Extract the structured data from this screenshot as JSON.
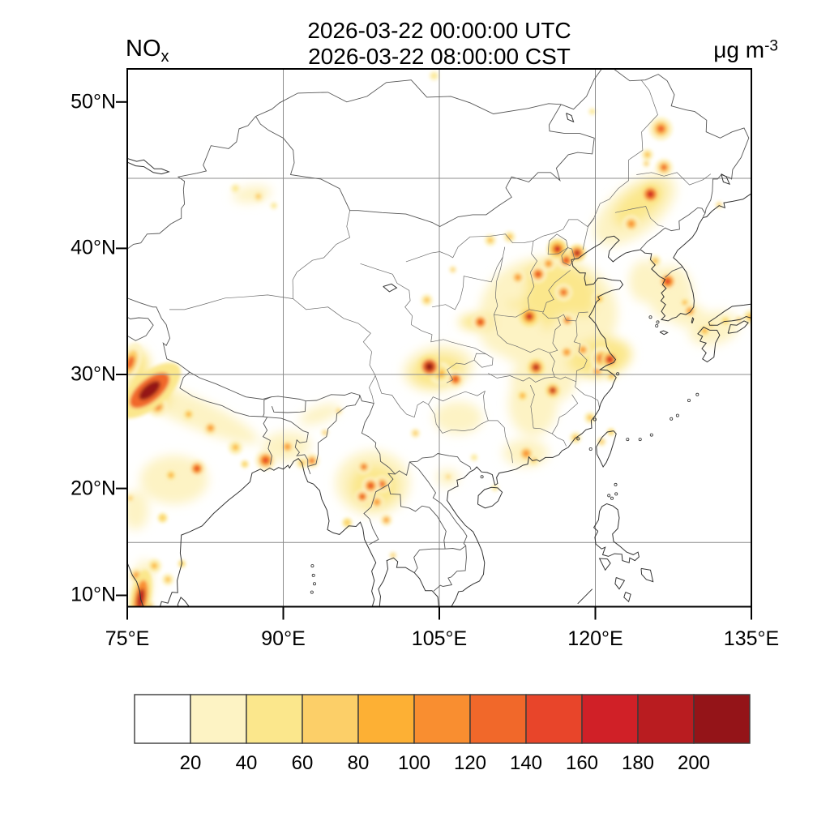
{
  "header": {
    "line1": "2026-03-22 00:00:00 UTC",
    "line2": "2026-03-22 08:00:00 CST"
  },
  "variable": {
    "main": "NO",
    "sub": "x"
  },
  "units": {
    "main": "μg m",
    "sup": "-3"
  },
  "axis": {
    "lat_labels": [
      {
        "text": "50°N",
        "lat": 50
      },
      {
        "text": "40°N",
        "lat": 40
      },
      {
        "text": "30°N",
        "lat": 30
      },
      {
        "text": "20°N",
        "lat": 20
      },
      {
        "text": "10°N",
        "lat": 10
      }
    ],
    "lon_labels": [
      {
        "text": "75°E",
        "lon": 75
      },
      {
        "text": "90°E",
        "lon": 90
      },
      {
        "text": "105°E",
        "lon": 105
      },
      {
        "text": "120°E",
        "lon": 120
      },
      {
        "text": "135°E",
        "lon": 135
      }
    ],
    "gridline_lats": [
      15,
      30,
      45
    ],
    "gridline_lons": [
      90,
      105,
      120
    ]
  },
  "colorbar": {
    "labels": [
      "20",
      "40",
      "60",
      "80",
      "100",
      "120",
      "140",
      "160",
      "180",
      "200"
    ],
    "colors": [
      "#FFFFFF",
      "#FDF3C4",
      "#FBE78C",
      "#FCCF68",
      "#FDB034",
      "#F98E30",
      "#F1682A",
      "#E8452A",
      "#D02027",
      "#B91C20",
      "#941418"
    ]
  },
  "chart_data": {
    "type": "heatmap",
    "variable": "NOx",
    "units": "μg m-3",
    "valid_time_utc": "2026-03-22 00:00:00 UTC",
    "valid_time_local": "2026-03-22 08:00:00 CST",
    "projection": "mercator",
    "lon_range": [
      75,
      135
    ],
    "lat_range": [
      8.9,
      52.0
    ],
    "contour_levels": [
      20,
      40,
      60,
      80,
      100,
      120,
      140,
      160,
      180,
      200
    ],
    "palette": [
      "#FFFFFF",
      "#FDF3C4",
      "#FBE78C",
      "#FCCF68",
      "#FDB034",
      "#F98E30",
      "#F1682A",
      "#E8452A",
      "#D02027",
      "#B91C20",
      "#941418"
    ],
    "hotspot_columns": [
      "lon",
      "lat",
      "value",
      "rx_px",
      "ry_px",
      "rot_deg"
    ],
    "broad_regions": [
      [
        80.8,
        27.0,
        30,
        95,
        18,
        24
      ],
      [
        77.5,
        28.6,
        50,
        26,
        14,
        40
      ],
      [
        79.5,
        20.8,
        25,
        42,
        30,
        0
      ],
      [
        75.7,
        30.7,
        45,
        18,
        22,
        15
      ],
      [
        75.8,
        18.0,
        25,
        16,
        24,
        0
      ],
      [
        76.4,
        10.8,
        35,
        13,
        34,
        8
      ],
      [
        90.3,
        23.8,
        35,
        30,
        18,
        -5
      ],
      [
        93.5,
        26.6,
        25,
        26,
        10,
        -20
      ],
      [
        98.6,
        20.5,
        28,
        46,
        40,
        0
      ],
      [
        98.7,
        20.2,
        45,
        30,
        26,
        0
      ],
      [
        115.5,
        35.0,
        30,
        85,
        70,
        0
      ],
      [
        115.8,
        36.3,
        45,
        55,
        42,
        0
      ],
      [
        112.0,
        33.5,
        30,
        40,
        30,
        0
      ],
      [
        118.6,
        33.0,
        30,
        40,
        28,
        20
      ],
      [
        115.0,
        29.5,
        25,
        40,
        30,
        0
      ],
      [
        120.4,
        31.4,
        45,
        40,
        24,
        -10
      ],
      [
        114.0,
        27.5,
        25,
        30,
        40,
        0
      ],
      [
        123.8,
        42.8,
        30,
        60,
        30,
        -38
      ],
      [
        124.2,
        43.2,
        45,
        38,
        18,
        -38
      ],
      [
        127.2,
        36.6,
        35,
        28,
        34,
        0
      ],
      [
        124.8,
        37.5,
        25,
        20,
        26,
        0
      ],
      [
        104.9,
        30.5,
        30,
        44,
        28,
        -10
      ],
      [
        104.8,
        30.3,
        45,
        32,
        20,
        -10
      ],
      [
        108.6,
        34.3,
        40,
        22,
        10,
        0
      ],
      [
        112.3,
        37.2,
        30,
        14,
        22,
        0
      ],
      [
        106.8,
        26.3,
        25,
        30,
        20,
        0
      ],
      [
        113.3,
        23.2,
        35,
        28,
        17,
        0
      ],
      [
        105.8,
        21.0,
        30,
        14,
        10,
        0
      ],
      [
        87.0,
        43.9,
        35,
        24,
        10,
        -8
      ],
      [
        131.4,
        33.8,
        28,
        32,
        20,
        -15
      ],
      [
        129.0,
        34.8,
        25,
        20,
        12,
        -20
      ]
    ],
    "peaks": [
      [
        77.15,
        28.65,
        200,
        12,
        26,
        50
      ],
      [
        77.9,
        27.3,
        120,
        7,
        7,
        0
      ],
      [
        75.3,
        31.0,
        130,
        7,
        14,
        20
      ],
      [
        76.3,
        9.7,
        190,
        7,
        20,
        10
      ],
      [
        76.9,
        8.95,
        150,
        5,
        5,
        0
      ],
      [
        75.9,
        11.9,
        110,
        5,
        5,
        0
      ],
      [
        80.25,
        13.0,
        70,
        4,
        4,
        0
      ],
      [
        78.9,
        11.5,
        90,
        4,
        4,
        0
      ],
      [
        78.4,
        17.3,
        70,
        5,
        5,
        0
      ],
      [
        77.6,
        12.8,
        90,
        5,
        5,
        0
      ],
      [
        75.3,
        19.1,
        60,
        5,
        5,
        0
      ],
      [
        81.7,
        21.8,
        140,
        6,
        6,
        0
      ],
      [
        79.2,
        21.2,
        80,
        5,
        5,
        0
      ],
      [
        80.9,
        26.6,
        90,
        5,
        5,
        0
      ],
      [
        83.0,
        25.4,
        100,
        5,
        5,
        0
      ],
      [
        85.4,
        23.7,
        90,
        5,
        5,
        0
      ],
      [
        86.3,
        22.2,
        70,
        4,
        4,
        0
      ],
      [
        88.3,
        22.55,
        150,
        7,
        7,
        0
      ],
      [
        90.4,
        23.75,
        100,
        5,
        5,
        0
      ],
      [
        91.8,
        22.3,
        80,
        4,
        4,
        0
      ],
      [
        92.75,
        22.5,
        130,
        5,
        5,
        0
      ],
      [
        94.0,
        25.0,
        60,
        4,
        4,
        0
      ],
      [
        95.3,
        26.9,
        60,
        4,
        4,
        0
      ],
      [
        96.15,
        16.85,
        70,
        5,
        5,
        0
      ],
      [
        97.75,
        21.95,
        120,
        5,
        5,
        0
      ],
      [
        98.4,
        20.25,
        140,
        6,
        6,
        0
      ],
      [
        99.5,
        20.4,
        130,
        6,
        6,
        0
      ],
      [
        97.6,
        19.25,
        140,
        5,
        5,
        0
      ],
      [
        99.0,
        18.75,
        110,
        5,
        5,
        0
      ],
      [
        99.9,
        17.1,
        100,
        4,
        4,
        0
      ],
      [
        100.55,
        13.8,
        60,
        4,
        4,
        0
      ],
      [
        102.7,
        24.95,
        60,
        5,
        5,
        0
      ],
      [
        105.85,
        21.05,
        60,
        4,
        4,
        0
      ],
      [
        104.05,
        30.65,
        200,
        8,
        8,
        0
      ],
      [
        105.1,
        30.1,
        90,
        8,
        8,
        0
      ],
      [
        106.55,
        29.6,
        140,
        6,
        6,
        0
      ],
      [
        103.8,
        36.05,
        90,
        4,
        4,
        0
      ],
      [
        108.95,
        34.3,
        140,
        6,
        6,
        0
      ],
      [
        112.55,
        37.8,
        110,
        5,
        5,
        0
      ],
      [
        114.5,
        38.05,
        140,
        6,
        6,
        0
      ],
      [
        113.65,
        34.75,
        160,
        7,
        7,
        0
      ],
      [
        114.3,
        30.6,
        180,
        6,
        6,
        0
      ],
      [
        115.9,
        28.65,
        180,
        5,
        5,
        0
      ],
      [
        113.0,
        28.2,
        80,
        5,
        5,
        0
      ],
      [
        117.25,
        31.85,
        110,
        5,
        5,
        0
      ],
      [
        118.8,
        32.05,
        110,
        5,
        5,
        0
      ],
      [
        120.6,
        31.35,
        130,
        8,
        8,
        0
      ],
      [
        121.4,
        31.25,
        170,
        6,
        6,
        0
      ],
      [
        120.2,
        30.3,
        100,
        5,
        5,
        0
      ],
      [
        121.55,
        29.9,
        80,
        4,
        4,
        0
      ],
      [
        119.5,
        26.3,
        90,
        4,
        4,
        0
      ],
      [
        118.1,
        24.55,
        90,
        4,
        4,
        0
      ],
      [
        113.35,
        23.15,
        110,
        6,
        6,
        0
      ],
      [
        114.05,
        22.6,
        80,
        4,
        4,
        0
      ],
      [
        108.35,
        22.8,
        50,
        4,
        4,
        0
      ],
      [
        110.35,
        20.05,
        40,
        4,
        4,
        0
      ],
      [
        116.35,
        39.95,
        160,
        7,
        7,
        0
      ],
      [
        117.2,
        39.1,
        150,
        6,
        6,
        0
      ],
      [
        118.25,
        39.65,
        180,
        6,
        6,
        0
      ],
      [
        115.5,
        38.85,
        110,
        5,
        5,
        0
      ],
      [
        116.95,
        36.65,
        120,
        6,
        6,
        0
      ],
      [
        117.3,
        34.45,
        130,
        5,
        5,
        0
      ],
      [
        120.35,
        36.15,
        90,
        5,
        5,
        0
      ],
      [
        111.75,
        40.85,
        80,
        4,
        4,
        0
      ],
      [
        109.9,
        40.6,
        90,
        4,
        4,
        0
      ],
      [
        106.3,
        38.4,
        60,
        4,
        4,
        0
      ],
      [
        123.45,
        41.8,
        110,
        6,
        6,
        0
      ],
      [
        125.3,
        43.9,
        170,
        7,
        7,
        0
      ],
      [
        126.6,
        45.75,
        130,
        6,
        6,
        0
      ],
      [
        125.0,
        46.6,
        80,
        4,
        4,
        0
      ],
      [
        126.3,
        48.3,
        120,
        8,
        8,
        0
      ],
      [
        124.9,
        46.0,
        60,
        4,
        4,
        0
      ],
      [
        119.7,
        49.4,
        50,
        4,
        4,
        0
      ],
      [
        104.5,
        51.6,
        50,
        5,
        5,
        0
      ],
      [
        121.5,
        25.05,
        70,
        4,
        4,
        0
      ],
      [
        120.6,
        24.2,
        60,
        5,
        5,
        0
      ],
      [
        126.95,
        37.5,
        150,
        7,
        7,
        0
      ],
      [
        129.1,
        35.2,
        100,
        5,
        5,
        0
      ],
      [
        128.6,
        35.85,
        80,
        4,
        4,
        0
      ],
      [
        125.75,
        39.05,
        80,
        4,
        4,
        0
      ],
      [
        130.5,
        33.6,
        90,
        5,
        5,
        0
      ],
      [
        131.0,
        33.95,
        80,
        4,
        4,
        0
      ],
      [
        132.5,
        34.4,
        70,
        4,
        4,
        0
      ],
      [
        133.8,
        34.5,
        60,
        4,
        4,
        0
      ],
      [
        131.9,
        43.15,
        60,
        4,
        4,
        0
      ],
      [
        134.9,
        34.7,
        80,
        5,
        5,
        0
      ],
      [
        87.6,
        43.75,
        60,
        6,
        6,
        0
      ],
      [
        85.4,
        44.3,
        45,
        5,
        5,
        0
      ],
      [
        89.1,
        43.1,
        45,
        4,
        4,
        0
      ]
    ]
  }
}
